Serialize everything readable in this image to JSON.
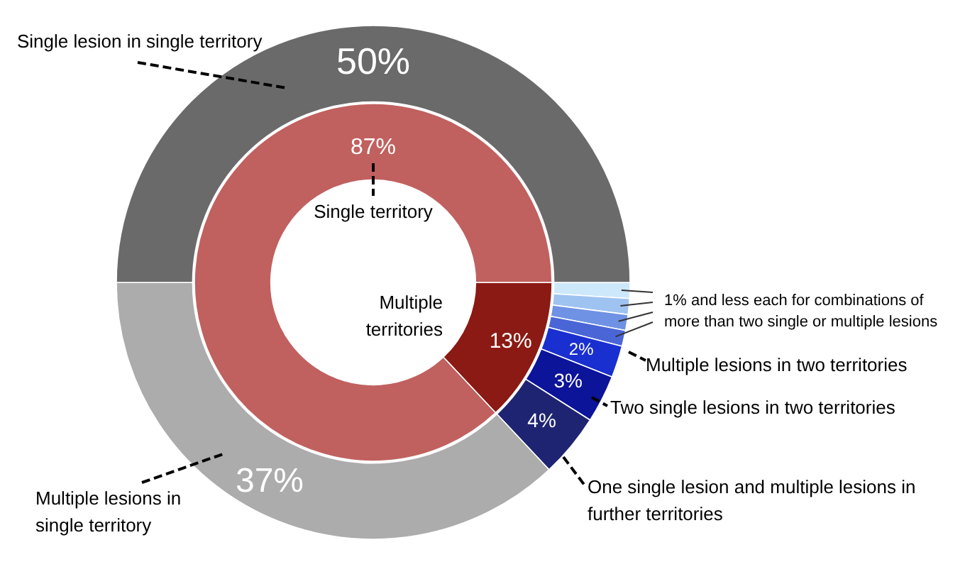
{
  "chart_data": [
    {
      "type": "donut",
      "categories": [
        null,
        null,
        null,
        null,
        "Multiple lesions in two territories",
        "Two single lesions in two territories",
        "One single lesion and multiple lesions in further territories",
        "Multiple lesions in single territory",
        "Single lesion in single territory"
      ],
      "values": [
        1,
        1,
        1,
        1,
        2,
        3,
        4,
        37,
        50
      ],
      "colors": [
        "#cde8fa",
        "#9fc3f0",
        "#6f92e4",
        "#4a66d6",
        "#1a2fd0",
        "#0c1499",
        "#1f2472",
        "#acacac",
        "#6a6a6a"
      ],
      "value_labels": [
        null,
        null,
        null,
        null,
        "2%",
        "3%",
        "4%",
        "37%",
        "50%"
      ],
      "annotations": [
        "1% and less each for combinations of more than two single or multiple lesions"
      ],
      "legend": false
    },
    {
      "type": "donut",
      "categories": [
        "Multiple territories",
        "Single territory"
      ],
      "values": [
        13,
        87
      ],
      "colors": [
        "#8a1a13",
        "#c0615f"
      ],
      "value_labels": [
        "13%",
        "87%"
      ],
      "legend": false
    }
  ]
}
